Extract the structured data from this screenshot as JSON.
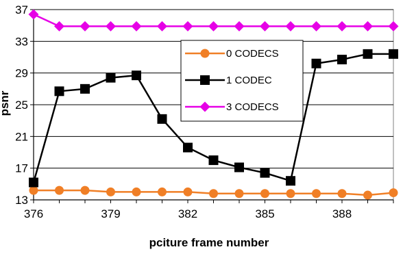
{
  "chart_data": {
    "type": "line",
    "title": "",
    "xlabel": "pciture frame number",
    "ylabel": "psnr",
    "xlim": [
      376,
      390
    ],
    "ylim": [
      13,
      37
    ],
    "x_ticks": [
      "376",
      "379",
      "382",
      "385",
      "388"
    ],
    "y_ticks": [
      "13",
      "17",
      "21",
      "25",
      "29",
      "33",
      "37"
    ],
    "grid": "horizontal",
    "legend_position": "right-inside",
    "x": [
      376,
      377,
      378,
      379,
      380,
      381,
      382,
      383,
      384,
      385,
      386,
      387,
      388,
      389,
      390
    ],
    "series": [
      {
        "name": "0 CODECS",
        "color": "#f07f26",
        "marker": "circle",
        "values": [
          14.2,
          14.2,
          14.2,
          14.0,
          14.0,
          14.0,
          14.0,
          13.8,
          13.8,
          13.8,
          13.8,
          13.8,
          13.8,
          13.6,
          13.9
        ]
      },
      {
        "name": "1 CODEC",
        "color": "#000000",
        "marker": "square",
        "values": [
          15.2,
          26.7,
          27.0,
          28.4,
          28.7,
          23.2,
          19.6,
          18.0,
          17.1,
          16.4,
          15.4,
          30.2,
          30.7,
          31.4,
          31.4
        ]
      },
      {
        "name": "3 CODECS",
        "color": "#e600e6",
        "marker": "diamond",
        "values": [
          36.4,
          34.9,
          34.9,
          34.9,
          34.9,
          34.9,
          34.9,
          34.9,
          34.9,
          34.9,
          34.9,
          34.9,
          34.9,
          34.9,
          34.9
        ]
      }
    ]
  }
}
